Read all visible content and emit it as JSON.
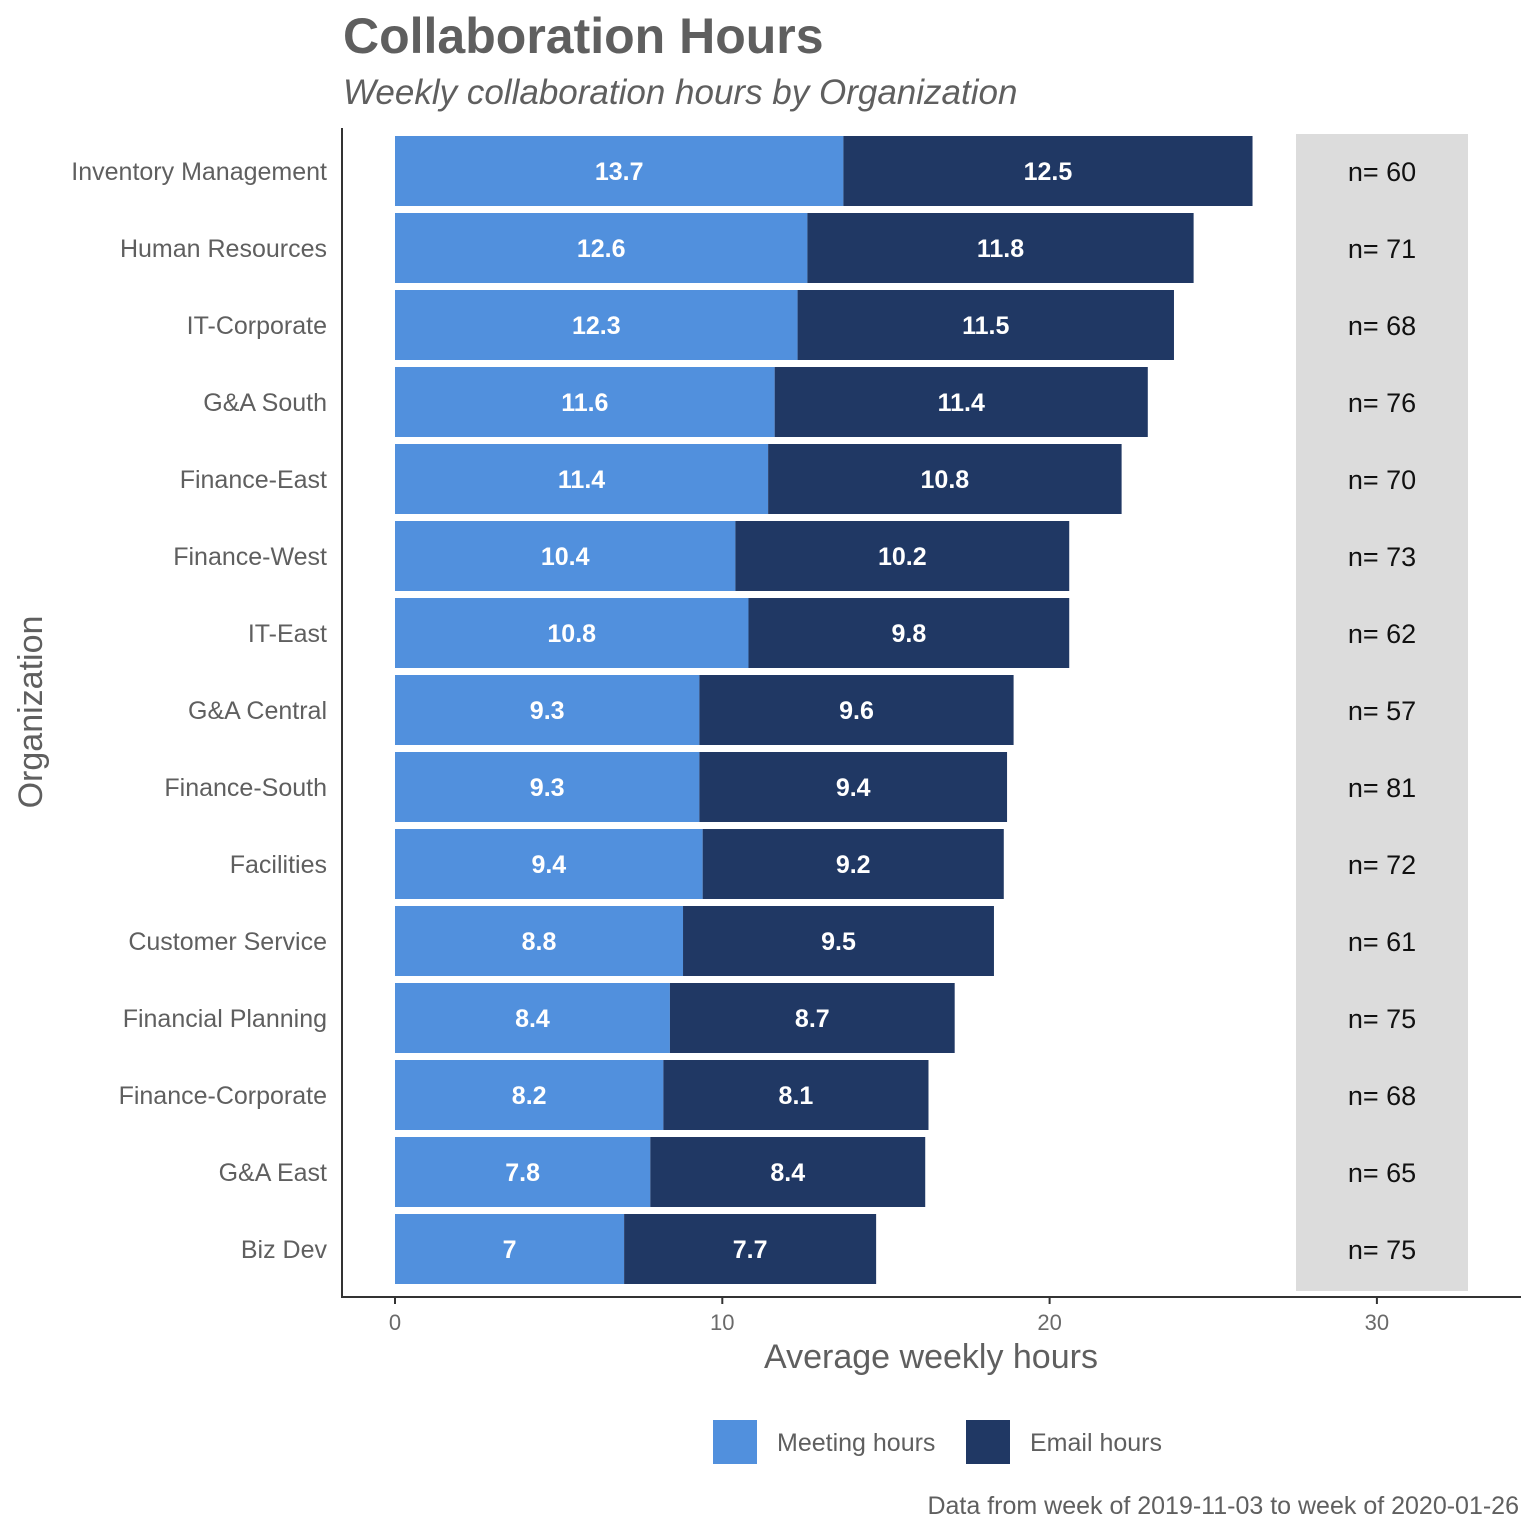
{
  "chart_data": {
    "type": "bar",
    "orientation": "horizontal",
    "stacked": true,
    "title": "Collaboration Hours",
    "subtitle": "Weekly collaboration hours by Organization",
    "xlabel": "Average weekly hours",
    "ylabel": "Organization",
    "xlim": [
      0,
      33
    ],
    "xticks": [
      0,
      10,
      20,
      30
    ],
    "categories": [
      "Inventory Management",
      "Human Resources",
      "IT-Corporate",
      "G&A South",
      "Finance-East",
      "Finance-West",
      "IT-East",
      "G&A Central",
      "Finance-South",
      "Facilities",
      "Customer Service",
      "Financial Planning",
      "Finance-Corporate",
      "G&A East",
      "Biz Dev"
    ],
    "series": [
      {
        "name": "Meeting hours",
        "color": "#5190dd",
        "values": [
          13.7,
          12.6,
          12.3,
          11.6,
          11.4,
          10.4,
          10.8,
          9.3,
          9.3,
          9.4,
          8.8,
          8.4,
          8.2,
          7.8,
          7
        ],
        "labels": [
          "13.7",
          "12.6",
          "12.3",
          "11.6",
          "11.4",
          "10.4",
          "10.8",
          "9.3",
          "9.3",
          "9.4",
          "8.8",
          "8.4",
          "8.2",
          "7.8",
          "7"
        ]
      },
      {
        "name": "Email hours",
        "color": "#203864",
        "values": [
          12.5,
          11.8,
          11.5,
          11.4,
          10.8,
          10.2,
          9.8,
          9.6,
          9.4,
          9.2,
          9.5,
          8.7,
          8.1,
          8.4,
          7.7
        ],
        "labels": [
          "12.5",
          "11.8",
          "11.5",
          "11.4",
          "10.8",
          "10.2",
          "9.8",
          "9.6",
          "9.4",
          "9.2",
          "9.5",
          "8.7",
          "8.1",
          "8.4",
          "7.7"
        ]
      }
    ],
    "n_labels": [
      "n= 60",
      "n= 71",
      "n= 68",
      "n= 76",
      "n= 70",
      "n= 73",
      "n= 62",
      "n= 57",
      "n= 81",
      "n= 72",
      "n= 61",
      "n= 75",
      "n= 68",
      "n= 65",
      "n= 75"
    ],
    "n_panel_color": "#dcdcdc",
    "legend_position": "bottom",
    "grid": false,
    "caption": "Data from week of 2019-11-03 to week of 2020-01-26"
  }
}
